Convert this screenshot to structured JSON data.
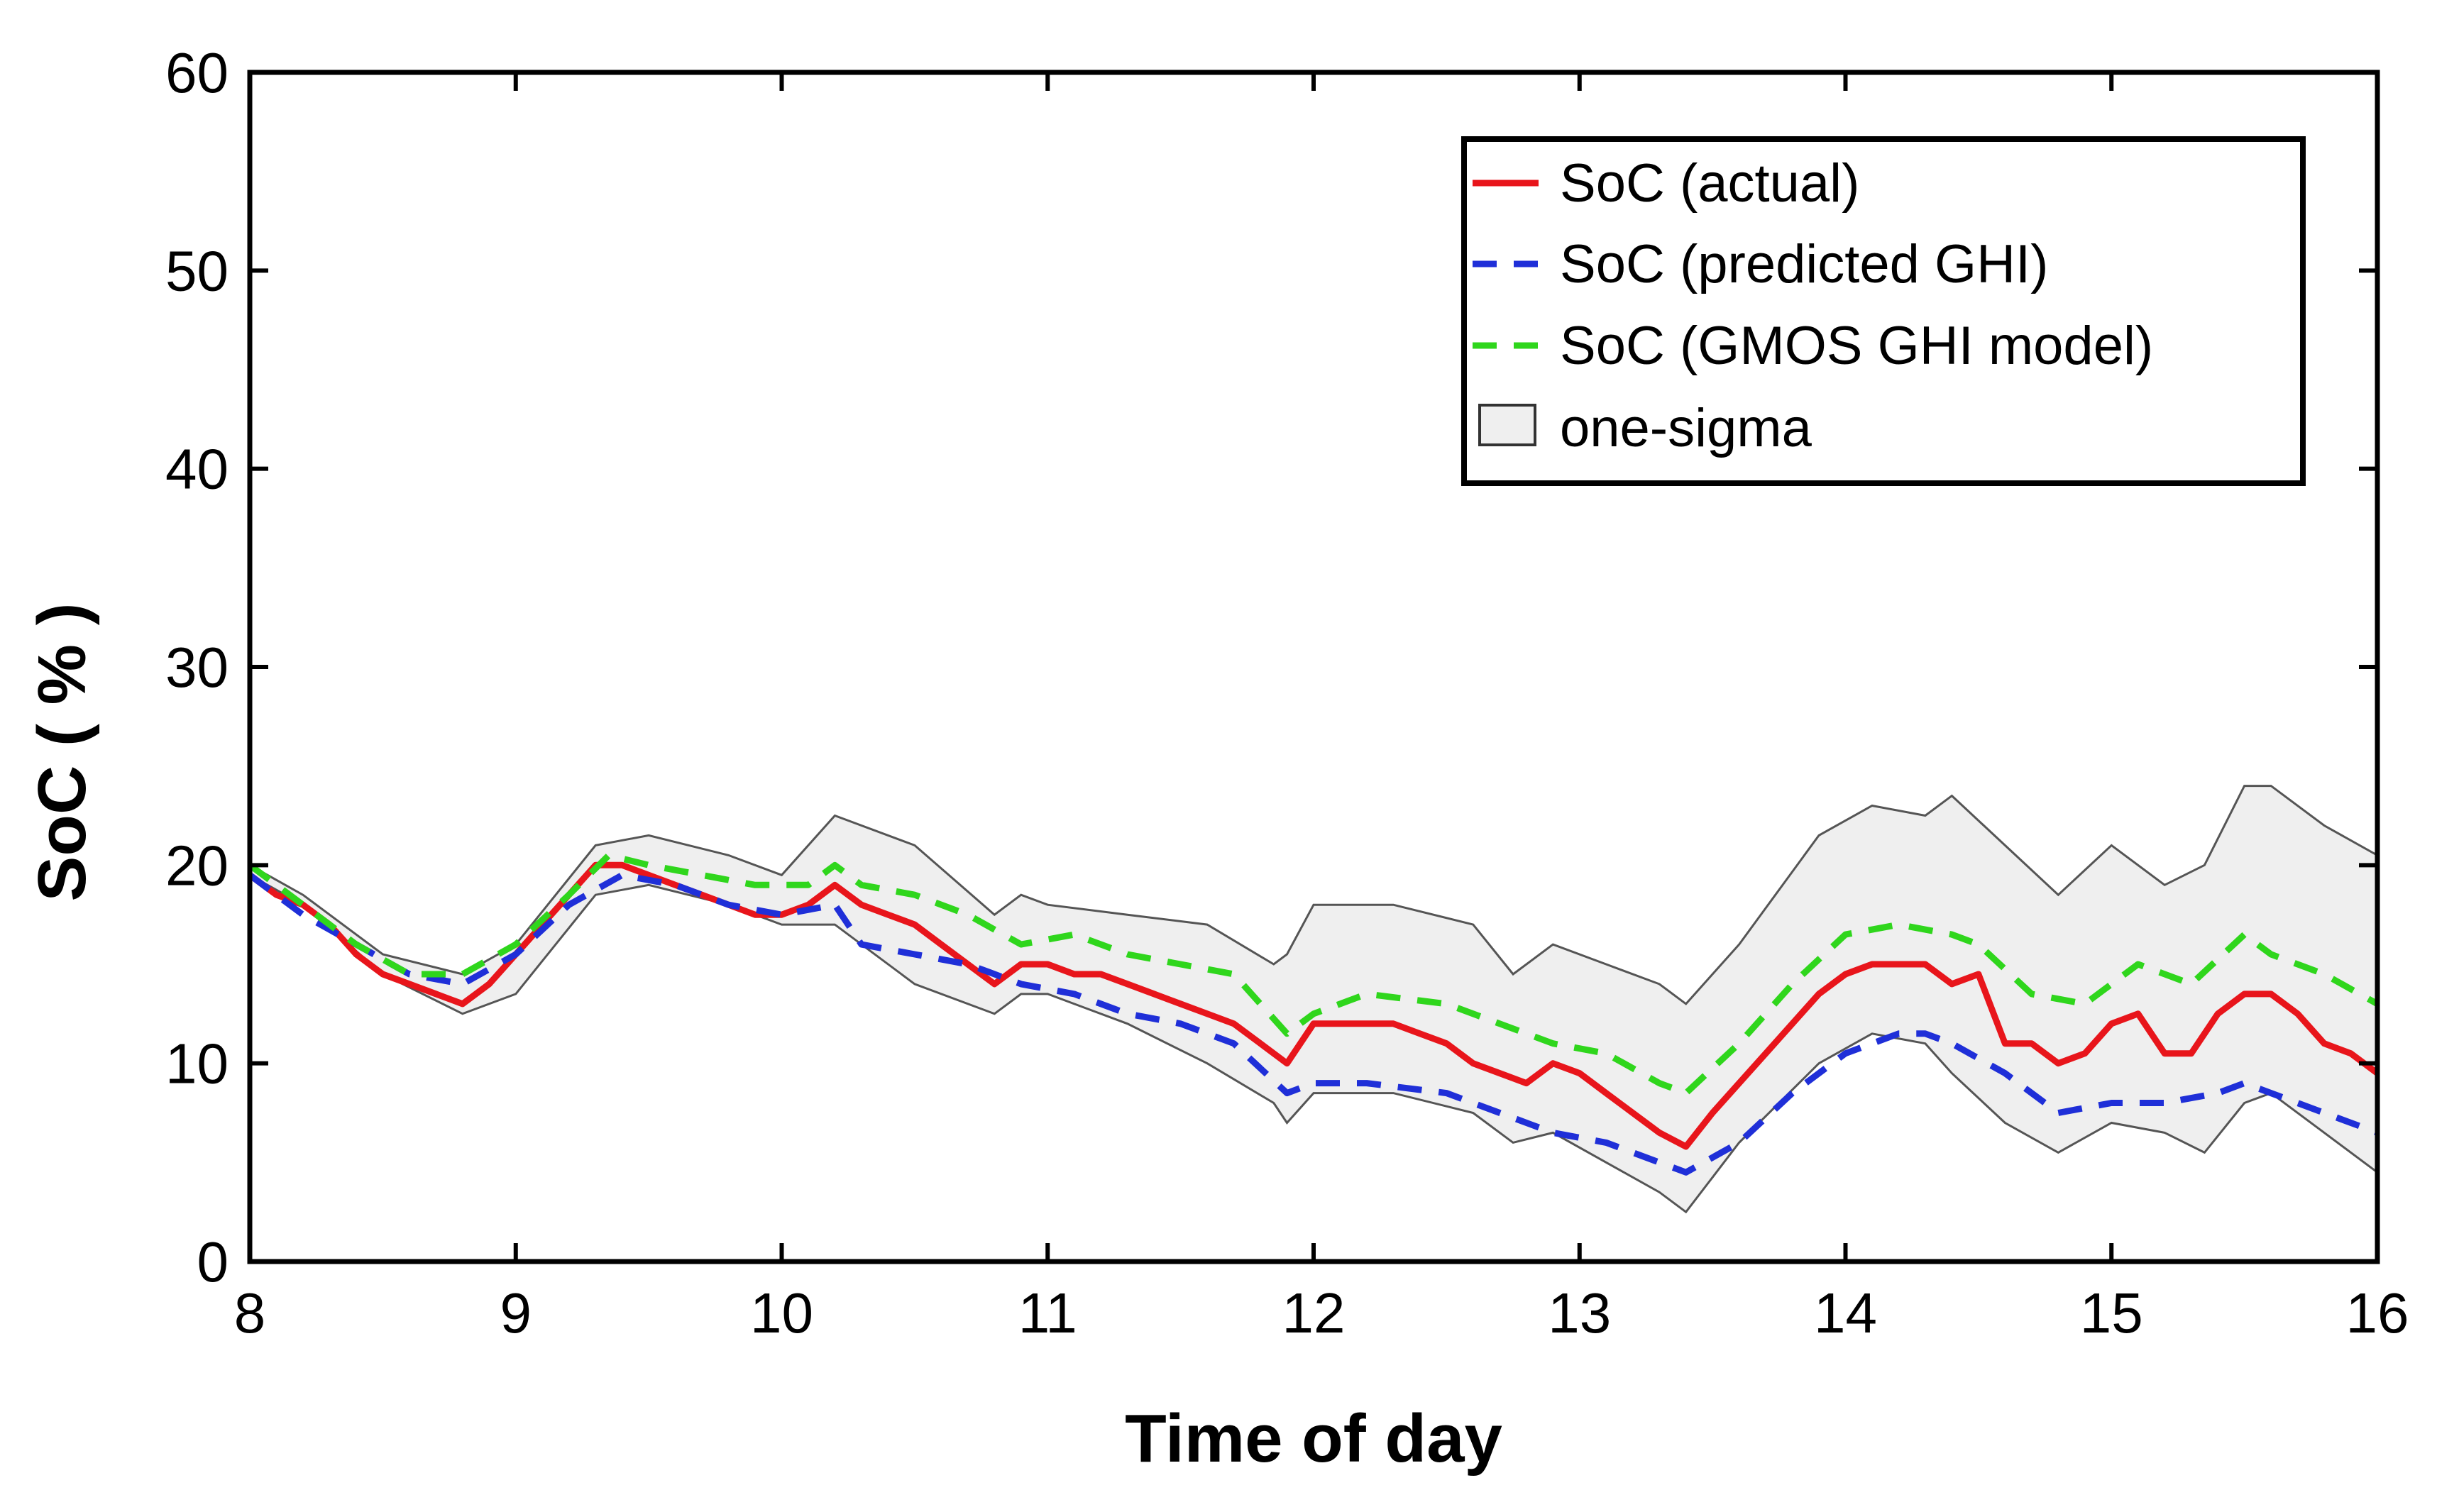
{
  "chart_data": {
    "type": "line",
    "title": "",
    "xlabel": "Time of day",
    "ylabel": "SoC ( % )",
    "xlim": [
      8,
      16
    ],
    "ylim": [
      0,
      60
    ],
    "xticks": [
      8,
      9,
      10,
      11,
      12,
      13,
      14,
      15,
      16
    ],
    "yticks": [
      0,
      10,
      20,
      30,
      40,
      50,
      60
    ],
    "legend_position": "top-right",
    "band": {
      "name": "one-sigma",
      "fill": "#efefef",
      "stroke": "#555555",
      "x": [
        8.0,
        8.2,
        8.5,
        8.8,
        9.0,
        9.3,
        9.5,
        9.8,
        10.0,
        10.2,
        10.5,
        10.8,
        10.9,
        11.0,
        11.3,
        11.6,
        11.85,
        11.9,
        12.0,
        12.3,
        12.6,
        12.75,
        12.9,
        13.1,
        13.3,
        13.4,
        13.6,
        13.9,
        14.1,
        14.3,
        14.4,
        14.6,
        14.8,
        15.0,
        15.2,
        15.35,
        15.5,
        15.6,
        15.8,
        16.0
      ],
      "upper": [
        20.0,
        18.5,
        15.5,
        14.5,
        16.0,
        21.0,
        21.5,
        20.5,
        19.5,
        22.5,
        21.0,
        17.5,
        18.5,
        18.0,
        17.5,
        17.0,
        15.0,
        15.5,
        18.0,
        18.0,
        17.0,
        14.5,
        16.0,
        15.0,
        14.0,
        13.0,
        16.0,
        21.5,
        23.0,
        22.5,
        23.5,
        21.0,
        18.5,
        21.0,
        19.0,
        20.0,
        24.0,
        24.0,
        22.0,
        20.5
      ],
      "lower": [
        19.5,
        18.0,
        14.5,
        12.5,
        13.5,
        18.5,
        19.0,
        18.0,
        17.0,
        17.0,
        14.0,
        12.5,
        13.5,
        13.5,
        12.0,
        10.0,
        8.0,
        7.0,
        8.5,
        8.5,
        7.5,
        6.0,
        6.5,
        5.0,
        3.5,
        2.5,
        6.0,
        10.0,
        11.5,
        11.0,
        9.5,
        7.0,
        5.5,
        7.0,
        6.5,
        5.5,
        8.0,
        8.5,
        6.5,
        4.5
      ]
    },
    "series": [
      {
        "name": "SoC (actual)",
        "color": "#e8151b",
        "dash": "solid",
        "x": [
          8.0,
          8.1,
          8.2,
          8.3,
          8.4,
          8.5,
          8.6,
          8.7,
          8.8,
          8.9,
          9.0,
          9.1,
          9.2,
          9.3,
          9.4,
          9.5,
          9.6,
          9.7,
          9.8,
          9.9,
          10.0,
          10.1,
          10.2,
          10.3,
          10.4,
          10.5,
          10.6,
          10.7,
          10.8,
          10.85,
          10.9,
          11.0,
          11.1,
          11.2,
          11.3,
          11.4,
          11.5,
          11.6,
          11.7,
          11.8,
          11.9,
          12.0,
          12.1,
          12.2,
          12.3,
          12.4,
          12.5,
          12.6,
          12.7,
          12.8,
          12.9,
          13.0,
          13.1,
          13.2,
          13.3,
          13.4,
          13.5,
          13.6,
          13.7,
          13.8,
          13.9,
          14.0,
          14.1,
          14.2,
          14.3,
          14.4,
          14.5,
          14.6,
          14.7,
          14.8,
          14.9,
          15.0,
          15.1,
          15.2,
          15.3,
          15.4,
          15.5,
          15.6,
          15.7,
          15.8,
          15.9,
          16.0
        ],
        "values": [
          19.5,
          18.5,
          18.0,
          17.0,
          15.5,
          14.5,
          14.0,
          13.5,
          13.0,
          14.0,
          15.5,
          17.0,
          18.5,
          20.0,
          20.0,
          19.5,
          19.0,
          18.5,
          18.0,
          17.5,
          17.5,
          18.0,
          19.0,
          18.0,
          17.5,
          17.0,
          16.0,
          15.0,
          14.0,
          14.5,
          15.0,
          15.0,
          14.5,
          14.5,
          14.0,
          13.5,
          13.0,
          12.5,
          12.0,
          11.0,
          10.0,
          12.0,
          12.0,
          12.0,
          12.0,
          11.5,
          11.0,
          10.0,
          9.5,
          9.0,
          10.0,
          9.5,
          8.5,
          7.5,
          6.5,
          5.8,
          7.5,
          9.0,
          10.5,
          12.0,
          13.5,
          14.5,
          15.0,
          15.0,
          15.0,
          14.0,
          14.5,
          11.0,
          11.0,
          10.0,
          10.5,
          12.0,
          12.5,
          10.5,
          10.5,
          12.5,
          13.5,
          13.5,
          12.5,
          11.0,
          10.5,
          9.5
        ]
      },
      {
        "name": "SoC (predicted GHI)",
        "color": "#1f2fd8",
        "dash": "dashed",
        "x": [
          8.0,
          8.2,
          8.4,
          8.6,
          8.8,
          9.0,
          9.2,
          9.4,
          9.6,
          9.8,
          10.0,
          10.2,
          10.3,
          10.5,
          10.7,
          10.9,
          11.1,
          11.3,
          11.5,
          11.7,
          11.9,
          12.0,
          12.2,
          12.5,
          12.7,
          12.9,
          13.1,
          13.3,
          13.4,
          13.6,
          13.8,
          14.0,
          14.2,
          14.3,
          14.4,
          14.6,
          14.8,
          15.0,
          15.2,
          15.4,
          15.5,
          15.6,
          15.8,
          16.0
        ],
        "values": [
          19.5,
          17.5,
          16.0,
          14.5,
          14.0,
          15.5,
          18.0,
          19.5,
          19.0,
          18.0,
          17.5,
          18.0,
          16.0,
          15.5,
          15.0,
          14.0,
          13.5,
          12.5,
          12.0,
          11.0,
          8.5,
          9.0,
          9.0,
          8.5,
          7.5,
          6.5,
          6.0,
          5.0,
          4.5,
          6.0,
          8.5,
          10.5,
          11.5,
          11.5,
          11.0,
          9.5,
          7.5,
          8.0,
          8.0,
          8.5,
          9.0,
          8.5,
          7.5,
          6.5
        ]
      },
      {
        "name": "SoC (GMOS GHI model)",
        "color": "#2fd61c",
        "dash": "dashed",
        "x": [
          8.0,
          8.2,
          8.4,
          8.6,
          8.8,
          9.0,
          9.2,
          9.35,
          9.5,
          9.7,
          9.9,
          10.1,
          10.2,
          10.3,
          10.5,
          10.7,
          10.9,
          11.1,
          11.3,
          11.5,
          11.7,
          11.9,
          12.0,
          12.2,
          12.5,
          12.7,
          12.9,
          13.1,
          13.3,
          13.4,
          13.6,
          13.8,
          14.0,
          14.2,
          14.4,
          14.5,
          14.7,
          14.9,
          15.1,
          15.3,
          15.5,
          15.6,
          15.8,
          16.0
        ],
        "values": [
          20.0,
          18.0,
          16.0,
          14.5,
          14.5,
          16.0,
          18.5,
          20.5,
          20.0,
          19.5,
          19.0,
          19.0,
          20.0,
          19.0,
          18.5,
          17.5,
          16.0,
          16.5,
          15.5,
          15.0,
          14.5,
          11.5,
          12.5,
          13.5,
          13.0,
          12.0,
          11.0,
          10.5,
          9.0,
          8.5,
          11.0,
          14.0,
          16.5,
          17.0,
          16.5,
          16.0,
          13.5,
          13.0,
          15.0,
          14.0,
          16.5,
          15.5,
          14.5,
          13.0
        ]
      }
    ]
  }
}
